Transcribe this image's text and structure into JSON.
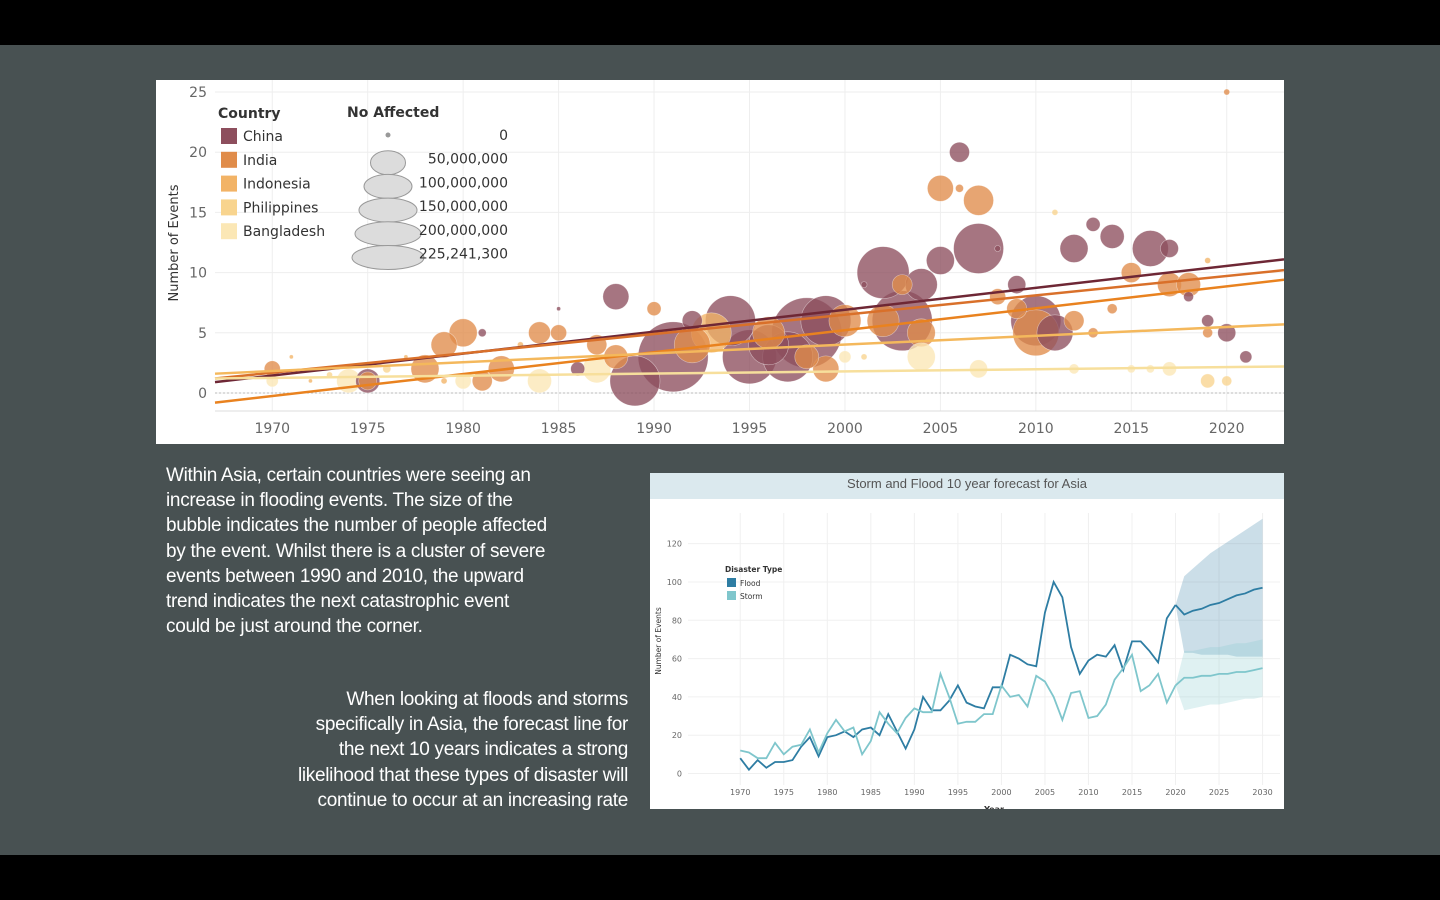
{
  "slide": {
    "caption_1_lines": [
      "Within Asia, certain countries were seeing an",
      "increase in flooding events. The size of the",
      "bubble indicates the number of people affected",
      "by the event. Whilst there is a cluster of severe",
      "events between 1990 and 2010, the upward",
      "trend indicates the next catastrophic event",
      "could be just around the corner."
    ],
    "caption_2_lines": [
      "When looking at floods and storms",
      "specifically in Asia, the forecast line for",
      "the next 10 years indicates a strong",
      "likelihood that these types of disaster will",
      "continue to occur at an increasing rate"
    ]
  },
  "chart_data": [
    {
      "type": "scatter",
      "title": "",
      "xlabel": "",
      "ylabel": "Number of Events",
      "xlim": [
        1967,
        2023
      ],
      "ylim": [
        -1.5,
        26
      ],
      "x_ticks": [
        "1970",
        "1975",
        "1980",
        "1985",
        "1990",
        "1995",
        "2000",
        "2005",
        "2010",
        "2015",
        "2020"
      ],
      "y_ticks": [
        "0",
        "5",
        "10",
        "15",
        "20",
        "25"
      ],
      "grid": true,
      "legend_color": {
        "title": "Country",
        "items": [
          {
            "name": "China",
            "color": "#8d4e5d"
          },
          {
            "name": "India",
            "color": "#e08c4a"
          },
          {
            "name": "Indonesia",
            "color": "#f2b366"
          },
          {
            "name": "Philippines",
            "color": "#f8d48e"
          },
          {
            "name": "Bangladesh",
            "color": "#fbe7b5"
          }
        ]
      },
      "legend_size": {
        "title": "No Affected",
        "items": [
          "0",
          "50,000,000",
          "100,000,000",
          "150,000,000",
          "200,000,000",
          "225,241,300"
        ]
      },
      "points": [
        {
          "x": 1970,
          "y": 2,
          "c": "India",
          "r": 8
        },
        {
          "x": 1970,
          "y": 1,
          "c": "Bangladesh",
          "r": 6
        },
        {
          "x": 1971,
          "y": 3,
          "c": "Indonesia",
          "r": 2
        },
        {
          "x": 1972,
          "y": 1,
          "c": "Indonesia",
          "r": 2
        },
        {
          "x": 1973,
          "y": 1.5,
          "c": "Philippines",
          "r": 3
        },
        {
          "x": 1974,
          "y": 1,
          "c": "Bangladesh",
          "r": 12
        },
        {
          "x": 1975,
          "y": 1,
          "c": "China",
          "r": 12
        },
        {
          "x": 1975,
          "y": 1,
          "c": "India",
          "r": 9
        },
        {
          "x": 1976,
          "y": 2,
          "c": "Philippines",
          "r": 4
        },
        {
          "x": 1977,
          "y": 3,
          "c": "Indonesia",
          "r": 2
        },
        {
          "x": 1978,
          "y": 2,
          "c": "India",
          "r": 14
        },
        {
          "x": 1979,
          "y": 4,
          "c": "India",
          "r": 13
        },
        {
          "x": 1979,
          "y": 1,
          "c": "Indonesia",
          "r": 3
        },
        {
          "x": 1980,
          "y": 5,
          "c": "India",
          "r": 14
        },
        {
          "x": 1980,
          "y": 1,
          "c": "Bangladesh",
          "r": 8
        },
        {
          "x": 1981,
          "y": 5,
          "c": "China",
          "r": 4
        },
        {
          "x": 1981,
          "y": 1,
          "c": "India",
          "r": 10
        },
        {
          "x": 1982,
          "y": 2,
          "c": "India",
          "r": 13
        },
        {
          "x": 1983,
          "y": 4,
          "c": "Indonesia",
          "r": 3
        },
        {
          "x": 1984,
          "y": 5,
          "c": "India",
          "r": 11
        },
        {
          "x": 1984,
          "y": 1,
          "c": "Bangladesh",
          "r": 12
        },
        {
          "x": 1985,
          "y": 5,
          "c": "India",
          "r": 8
        },
        {
          "x": 1985,
          "y": 7,
          "c": "China",
          "r": 2
        },
        {
          "x": 1986,
          "y": 2,
          "c": "China",
          "r": 7
        },
        {
          "x": 1987,
          "y": 4,
          "c": "India",
          "r": 10
        },
        {
          "x": 1987,
          "y": 2,
          "c": "Bangladesh",
          "r": 14
        },
        {
          "x": 1988,
          "y": 8,
          "c": "China",
          "r": 13
        },
        {
          "x": 1988,
          "y": 3,
          "c": "India",
          "r": 12
        },
        {
          "x": 1989,
          "y": 1,
          "c": "China",
          "r": 25
        },
        {
          "x": 1990,
          "y": 7,
          "c": "India",
          "r": 7
        },
        {
          "x": 1991,
          "y": 3,
          "c": "China",
          "r": 35
        },
        {
          "x": 1992,
          "y": 6,
          "c": "China",
          "r": 10
        },
        {
          "x": 1992,
          "y": 4,
          "c": "India",
          "r": 18
        },
        {
          "x": 1993,
          "y": 5,
          "c": "Indonesia",
          "r": 20
        },
        {
          "x": 1994,
          "y": 6,
          "c": "China",
          "r": 25
        },
        {
          "x": 1995,
          "y": 3,
          "c": "China",
          "r": 27
        },
        {
          "x": 1996,
          "y": 4,
          "c": "China",
          "r": 20
        },
        {
          "x": 1996,
          "y": 5,
          "c": "India",
          "r": 16
        },
        {
          "x": 1997,
          "y": 3,
          "c": "China",
          "r": 25
        },
        {
          "x": 1998,
          "y": 5,
          "c": "China",
          "r": 35
        },
        {
          "x": 1998,
          "y": 3,
          "c": "India",
          "r": 12
        },
        {
          "x": 1999,
          "y": 6,
          "c": "China",
          "r": 25
        },
        {
          "x": 1999,
          "y": 2,
          "c": "India",
          "r": 13
        },
        {
          "x": 2000,
          "y": 6,
          "c": "India",
          "r": 16
        },
        {
          "x": 2000,
          "y": 3,
          "c": "Bangladesh",
          "r": 6
        },
        {
          "x": 2001,
          "y": 9,
          "c": "China",
          "r": 3
        },
        {
          "x": 2001,
          "y": 3,
          "c": "Philippines",
          "r": 3
        },
        {
          "x": 2002,
          "y": 10,
          "c": "China",
          "r": 26
        },
        {
          "x": 2002,
          "y": 6,
          "c": "India",
          "r": 16
        },
        {
          "x": 2003,
          "y": 6,
          "c": "China",
          "r": 30
        },
        {
          "x": 2003,
          "y": 9,
          "c": "India",
          "r": 10
        },
        {
          "x": 2004,
          "y": 9,
          "c": "China",
          "r": 16
        },
        {
          "x": 2004,
          "y": 5,
          "c": "India",
          "r": 14
        },
        {
          "x": 2004,
          "y": 3,
          "c": "Bangladesh",
          "r": 14
        },
        {
          "x": 2005,
          "y": 17,
          "c": "India",
          "r": 13
        },
        {
          "x": 2005,
          "y": 11,
          "c": "China",
          "r": 14
        },
        {
          "x": 2006,
          "y": 20,
          "c": "China",
          "r": 10
        },
        {
          "x": 2006,
          "y": 17,
          "c": "India",
          "r": 4
        },
        {
          "x": 2007,
          "y": 16,
          "c": "India",
          "r": 15
        },
        {
          "x": 2007,
          "y": 12,
          "c": "China",
          "r": 25
        },
        {
          "x": 2007,
          "y": 2,
          "c": "Bangladesh",
          "r": 9
        },
        {
          "x": 2008,
          "y": 12,
          "c": "China",
          "r": 3
        },
        {
          "x": 2008,
          "y": 8,
          "c": "India",
          "r": 8
        },
        {
          "x": 2009,
          "y": 9,
          "c": "China",
          "r": 9
        },
        {
          "x": 2009,
          "y": 7,
          "c": "India",
          "r": 10
        },
        {
          "x": 2010,
          "y": 6,
          "c": "China",
          "r": 25
        },
        {
          "x": 2010,
          "y": 5,
          "c": "India",
          "r": 23
        },
        {
          "x": 2011,
          "y": 5,
          "c": "China",
          "r": 18
        },
        {
          "x": 2011,
          "y": 15,
          "c": "Philippines",
          "r": 3
        },
        {
          "x": 2012,
          "y": 12,
          "c": "China",
          "r": 14
        },
        {
          "x": 2012,
          "y": 6,
          "c": "India",
          "r": 10
        },
        {
          "x": 2012,
          "y": 2,
          "c": "Bangladesh",
          "r": 5
        },
        {
          "x": 2013,
          "y": 14,
          "c": "China",
          "r": 7
        },
        {
          "x": 2013,
          "y": 5,
          "c": "India",
          "r": 5
        },
        {
          "x": 2014,
          "y": 13,
          "c": "China",
          "r": 12
        },
        {
          "x": 2014,
          "y": 7,
          "c": "India",
          "r": 5
        },
        {
          "x": 2015,
          "y": 10,
          "c": "India",
          "r": 10
        },
        {
          "x": 2015,
          "y": 2,
          "c": "Bangladesh",
          "r": 4
        },
        {
          "x": 2016,
          "y": 12,
          "c": "China",
          "r": 18
        },
        {
          "x": 2016,
          "y": 2,
          "c": "Bangladesh",
          "r": 4
        },
        {
          "x": 2017,
          "y": 12,
          "c": "China",
          "r": 9
        },
        {
          "x": 2017,
          "y": 9,
          "c": "India",
          "r": 12
        },
        {
          "x": 2017,
          "y": 2,
          "c": "Bangladesh",
          "r": 7
        },
        {
          "x": 2018,
          "y": 9,
          "c": "India",
          "r": 12
        },
        {
          "x": 2018,
          "y": 8,
          "c": "China",
          "r": 5
        },
        {
          "x": 2019,
          "y": 6,
          "c": "China",
          "r": 6
        },
        {
          "x": 2019,
          "y": 5,
          "c": "India",
          "r": 5
        },
        {
          "x": 2019,
          "y": 1,
          "c": "Philippines",
          "r": 7
        },
        {
          "x": 2019,
          "y": 11,
          "c": "Indonesia",
          "r": 3
        },
        {
          "x": 2020,
          "y": 5,
          "c": "China",
          "r": 9
        },
        {
          "x": 2020,
          "y": 1,
          "c": "Philippines",
          "r": 5
        },
        {
          "x": 2020,
          "y": 25,
          "c": "India",
          "r": 3
        },
        {
          "x": 2021,
          "y": 3,
          "c": "China",
          "r": 6
        }
      ],
      "trend_lines": [
        {
          "country": "China",
          "from": [
            1967,
            0.9
          ],
          "to": [
            2023,
            11.1
          ]
        },
        {
          "country": "India",
          "from": [
            1967,
            1.2
          ],
          "to": [
            2023,
            10.2
          ]
        },
        {
          "country": "Indonesia",
          "from": [
            1967,
            -0.8
          ],
          "to": [
            2023,
            9.4
          ]
        },
        {
          "country": "Philippines",
          "from": [
            1967,
            1.6
          ],
          "to": [
            2023,
            5.7
          ]
        },
        {
          "country": "Bangladesh",
          "from": [
            1967,
            1.2
          ],
          "to": [
            2023,
            2.2
          ]
        }
      ]
    },
    {
      "type": "line",
      "title": "Storm and Flood 10 year forecast for Asia",
      "xlabel": "Year",
      "ylabel": "Number of Events",
      "xlim": [
        1964,
        2032
      ],
      "ylim": [
        -6,
        136
      ],
      "x_ticks": [
        "1970",
        "1975",
        "1980",
        "1985",
        "1990",
        "1995",
        "2000",
        "2005",
        "2010",
        "2015",
        "2020",
        "2025",
        "2030"
      ],
      "y_ticks": [
        "0",
        "20",
        "40",
        "60",
        "80",
        "100",
        "120"
      ],
      "legend": {
        "title": "Disaster Type",
        "items": [
          {
            "name": "Flood",
            "color": "#2e7da3"
          },
          {
            "name": "Storm",
            "color": "#7fc6cc"
          }
        ]
      },
      "series": [
        {
          "name": "Flood",
          "color": "#2e7da3",
          "x": [
            1970,
            1971,
            1972,
            1973,
            1974,
            1975,
            1976,
            1977,
            1978,
            1979,
            1980,
            1981,
            1982,
            1983,
            1984,
            1985,
            1986,
            1987,
            1988,
            1989,
            1990,
            1991,
            1992,
            1993,
            1994,
            1995,
            1996,
            1997,
            1998,
            1999,
            2000,
            2001,
            2002,
            2003,
            2004,
            2005,
            2006,
            2007,
            2008,
            2009,
            2010,
            2011,
            2012,
            2013,
            2014,
            2015,
            2016,
            2017,
            2018,
            2019,
            2020
          ],
          "y": [
            8,
            2,
            7,
            3,
            6,
            6,
            7,
            14,
            19,
            9,
            19,
            20,
            22,
            19,
            23,
            24,
            20,
            31,
            22,
            13,
            23,
            40,
            33,
            33,
            38,
            46,
            37,
            35,
            34,
            45,
            45,
            62,
            60,
            57,
            56,
            84,
            100,
            92,
            66,
            52,
            59,
            62,
            61,
            67,
            54,
            69,
            69,
            64,
            58,
            81,
            88
          ]
        },
        {
          "name": "Storm",
          "color": "#7fc6cc",
          "x": [
            1970,
            1971,
            1972,
            1973,
            1974,
            1975,
            1976,
            1977,
            1978,
            1979,
            1980,
            1981,
            1982,
            1983,
            1984,
            1985,
            1986,
            1987,
            1988,
            1989,
            1990,
            1991,
            1992,
            1993,
            1994,
            1995,
            1996,
            1997,
            1998,
            1999,
            2000,
            2001,
            2002,
            2003,
            2004,
            2005,
            2006,
            2007,
            2008,
            2009,
            2010,
            2011,
            2012,
            2013,
            2014,
            2015,
            2016,
            2017,
            2018,
            2019,
            2020
          ],
          "y": [
            12,
            11,
            8,
            8,
            16,
            10,
            14,
            15,
            23,
            11,
            21,
            28,
            22,
            24,
            10,
            17,
            32,
            26,
            21,
            29,
            34,
            32,
            32,
            52,
            40,
            26,
            27,
            27,
            31,
            31,
            46,
            40,
            41,
            35,
            51,
            48,
            40,
            28,
            42,
            43,
            29,
            30,
            36,
            49,
            55,
            62,
            43,
            46,
            52,
            37,
            46
          ]
        },
        {
          "name": "Flood forecast",
          "color": "#2e7da3",
          "x": [
            2020,
            2021,
            2022,
            2023,
            2024,
            2025,
            2026,
            2027,
            2028,
            2029,
            2030
          ],
          "y": [
            88,
            83,
            85,
            86,
            88,
            89,
            91,
            93,
            94,
            96,
            97
          ],
          "lower": [
            88,
            63,
            63,
            62,
            62,
            62,
            62,
            61,
            61,
            61,
            61
          ],
          "upper": [
            88,
            103,
            107,
            111,
            115,
            118,
            121,
            124,
            127,
            130,
            133
          ]
        },
        {
          "name": "Storm forecast",
          "color": "#7fc6cc",
          "x": [
            2020,
            2021,
            2022,
            2023,
            2024,
            2025,
            2026,
            2027,
            2028,
            2029,
            2030
          ],
          "y": [
            46,
            50,
            50,
            51,
            51,
            52,
            52,
            53,
            53,
            54,
            55
          ],
          "lower": [
            46,
            33,
            34,
            35,
            36,
            36,
            37,
            38,
            39,
            39,
            40
          ],
          "upper": [
            46,
            64,
            64,
            65,
            66,
            66,
            67,
            68,
            68,
            69,
            70
          ]
        }
      ]
    }
  ]
}
